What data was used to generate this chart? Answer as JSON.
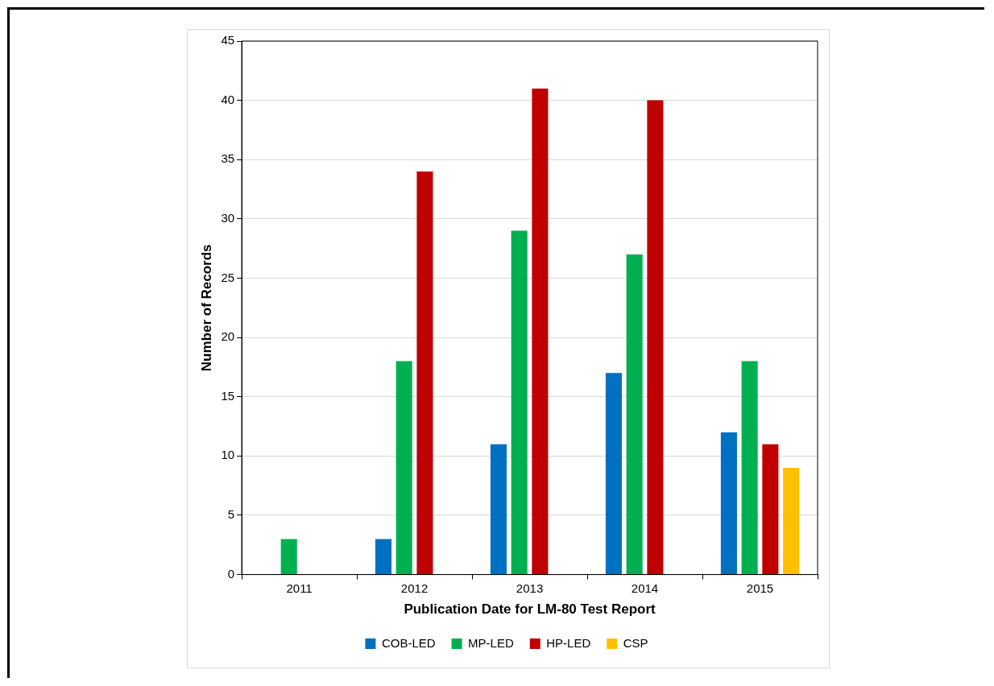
{
  "chart_data": {
    "type": "bar",
    "xlabel": "Publication Date for LM-80 Test Report",
    "ylabel": "Number of Records",
    "categories": [
      "2011",
      "2012",
      "2013",
      "2014",
      "2015"
    ],
    "series": [
      {
        "name": "COB-LED",
        "color": "#0070c0",
        "values": [
          null,
          3,
          11,
          17,
          12
        ]
      },
      {
        "name": "MP-LED",
        "color": "#00b050",
        "values": [
          3,
          18,
          29,
          27,
          18
        ]
      },
      {
        "name": "HP-LED",
        "color": "#c00000",
        "values": [
          null,
          34,
          41,
          40,
          11
        ]
      },
      {
        "name": "CSP",
        "color": "#ffc000",
        "values": [
          null,
          null,
          null,
          null,
          9
        ]
      }
    ],
    "ylim": [
      0,
      45
    ],
    "yticks": [
      0,
      5,
      10,
      15,
      20,
      25,
      30,
      35,
      40,
      45
    ],
    "grid": "y",
    "legend": "bottom"
  }
}
